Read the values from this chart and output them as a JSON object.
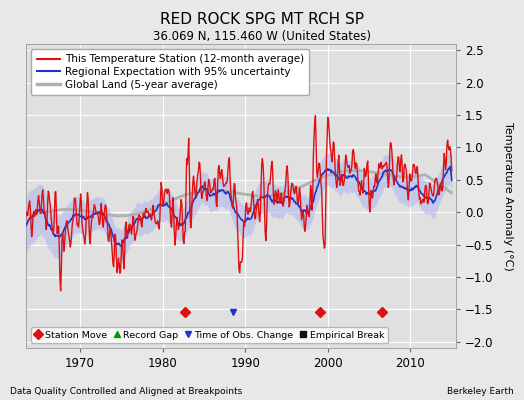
{
  "title": "RED ROCK SPG MT RCH SP",
  "subtitle": "36.069 N, 115.460 W (United States)",
  "ylabel": "Temperature Anomaly (°C)",
  "xlabel_left": "Data Quality Controlled and Aligned at Breakpoints",
  "xlabel_right": "Berkeley Earth",
  "ylim": [
    -2.1,
    2.6
  ],
  "yticks": [
    -2,
    -1.5,
    -1,
    -0.5,
    0,
    0.5,
    1,
    1.5,
    2,
    2.5
  ],
  "xlim": [
    1963.5,
    2015.5
  ],
  "xticks": [
    1970,
    1980,
    1990,
    2000,
    2010
  ],
  "bg_color": "#e0e0e0",
  "fig_bg_color": "#e8e8e8",
  "station_moves": [
    1982.75,
    1999.0,
    2006.5
  ],
  "time_of_obs_change": [
    1988.5
  ],
  "marker_y": -1.55,
  "legend_entries": [
    {
      "label": "This Temperature Station (12-month average)",
      "color": "#cc0000",
      "lw": 1.5
    },
    {
      "label": "Regional Expectation with 95% uncertainty",
      "color": "#3333bb",
      "lw": 1.5
    },
    {
      "label": "Global Land (5-year average)",
      "color": "#aaaaaa",
      "lw": 2.5
    }
  ]
}
